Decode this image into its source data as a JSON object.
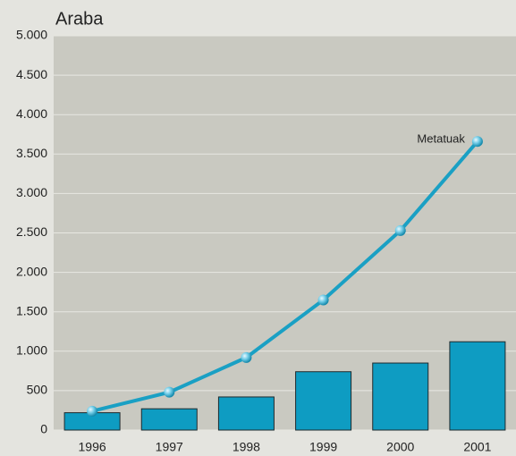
{
  "chart_data": {
    "type": "combo",
    "title": "Araba",
    "categories": [
      "1996",
      "1997",
      "1998",
      "1999",
      "2000",
      "2001"
    ],
    "series": [
      {
        "type": "bar",
        "color": "#0e9cc2",
        "values": [
          220,
          270,
          420,
          740,
          850,
          1120
        ]
      },
      {
        "type": "line",
        "name": "Metatuak",
        "color": "#1aa0c4",
        "values": [
          240,
          480,
          920,
          1650,
          2530,
          3660
        ]
      }
    ],
    "ylim": [
      0,
      5000
    ],
    "yticks": [
      0,
      500,
      {
        "value": 1000,
        "label": "1.000"
      },
      {
        "value": 1500,
        "label": "1.500"
      },
      {
        "value": 2000,
        "label": "2.000"
      },
      {
        "value": 2500,
        "label": "2.500"
      },
      {
        "value": 3000,
        "label": "3.000"
      },
      {
        "value": 3500,
        "label": "3.500"
      },
      {
        "value": 4000,
        "label": "4.000"
      },
      {
        "value": 4500,
        "label": "4.500"
      },
      {
        "value": 5000,
        "label": "5.000"
      }
    ],
    "grid": true
  }
}
